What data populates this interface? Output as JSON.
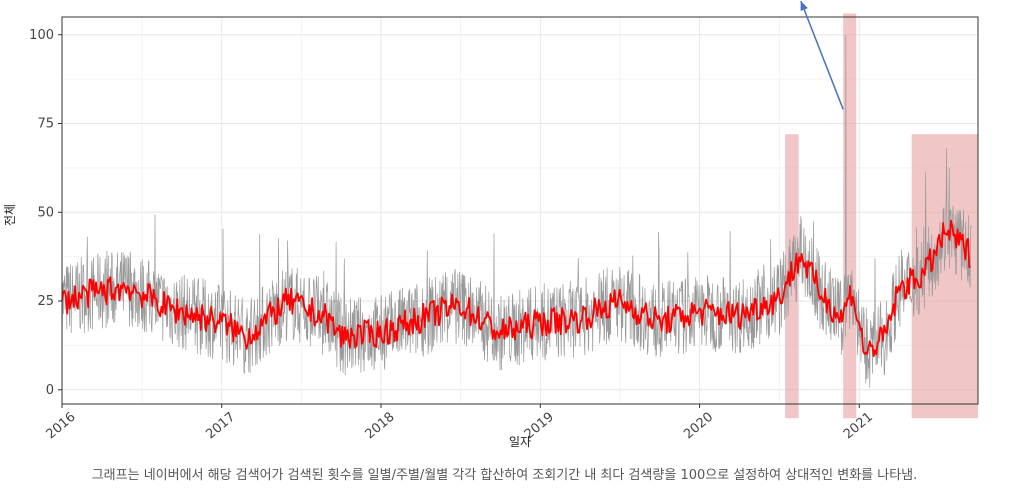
{
  "chart_data": {
    "type": "line",
    "xlabel": "일자",
    "ylabel": "전체",
    "ylim": [
      -4,
      105
    ],
    "xlim": [
      "2016-01-01",
      "2021-09-30"
    ],
    "yticks": [
      0,
      25,
      50,
      75,
      100
    ],
    "xticks": [
      {
        "date": "2016-01-01",
        "label": "2016"
      },
      {
        "date": "2017-01-01",
        "label": "2017"
      },
      {
        "date": "2018-01-01",
        "label": "2018"
      },
      {
        "date": "2019-01-01",
        "label": "2019"
      },
      {
        "date": "2020-01-01",
        "label": "2020"
      },
      {
        "date": "2021-01-01",
        "label": "2021"
      }
    ],
    "grid": true,
    "series": [
      {
        "style": "daily raw values, grey thin line",
        "color": "#999999",
        "x": [
          "2016-01-01",
          "2016-07-01",
          "2016-12-01",
          "2017-03-01",
          "2017-10-01",
          "2018-03-01",
          "2019-01-01",
          "2019-07-01",
          "2020-01-01",
          "2020-08-01",
          "2020-11-01",
          "2020-12-01",
          "2021-01-15",
          "2021-04-01",
          "2021-07-20",
          "2021-09-15"
        ],
        "y": [
          25,
          28,
          22,
          20,
          14,
          17,
          20,
          26,
          22,
          38,
          25,
          100,
          9,
          27,
          68,
          40
        ]
      },
      {
        "style": "smoothed trend, red thick line",
        "color": "#ff0000",
        "x": [
          "2016-01-01",
          "2016-03-01",
          "2016-06-01",
          "2016-09-01",
          "2017-01-01",
          "2017-03-01",
          "2017-06-01",
          "2017-09-01",
          "2017-10-01",
          "2018-01-01",
          "2018-04-01",
          "2018-07-01",
          "2018-10-01",
          "2019-01-01",
          "2019-04-01",
          "2019-07-01",
          "2019-10-01",
          "2020-01-01",
          "2020-04-01",
          "2020-07-01",
          "2020-08-20",
          "2020-10-01",
          "2020-11-20",
          "2020-12-15",
          "2021-01-15",
          "2021-03-01",
          "2021-04-01",
          "2021-06-01",
          "2021-07-20",
          "2021-09-15"
        ],
        "y": [
          25,
          27,
          29,
          23,
          19,
          15,
          25,
          20,
          15,
          16,
          20,
          24,
          16,
          19,
          20,
          25,
          19,
          22,
          21,
          26,
          38,
          28,
          20,
          28,
          10,
          15,
          28,
          33,
          45,
          38
        ]
      }
    ],
    "highlight_bands": [
      {
        "x_from": "2020-07-15",
        "x_to": "2020-08-15",
        "y_from": -8,
        "y_to": 72,
        "color": "#e8a0a0"
      },
      {
        "x_from": "2020-11-25",
        "x_to": "2020-12-25",
        "y_from": -8,
        "y_to": 106,
        "color": "#e8a0a0"
      },
      {
        "x_from": "2021-05-01",
        "x_to": "2021-09-30",
        "y_from": -8,
        "y_to": 72,
        "color": "#e8a0a0"
      }
    ],
    "annotation_arrow": {
      "from": {
        "x": "2020-11-25",
        "y": 79
      },
      "to": {
        "x": "2020-08-20",
        "y": 110
      },
      "color": "#4472c4"
    }
  },
  "caption": "그래프는 네이버에서 해당 검색어가 검색된 횟수를 일별/주별/월별 각각 합산하여 조회기간 내 최다 검색량을 100으로 설정하여 상대적인 변화를 나타냄."
}
